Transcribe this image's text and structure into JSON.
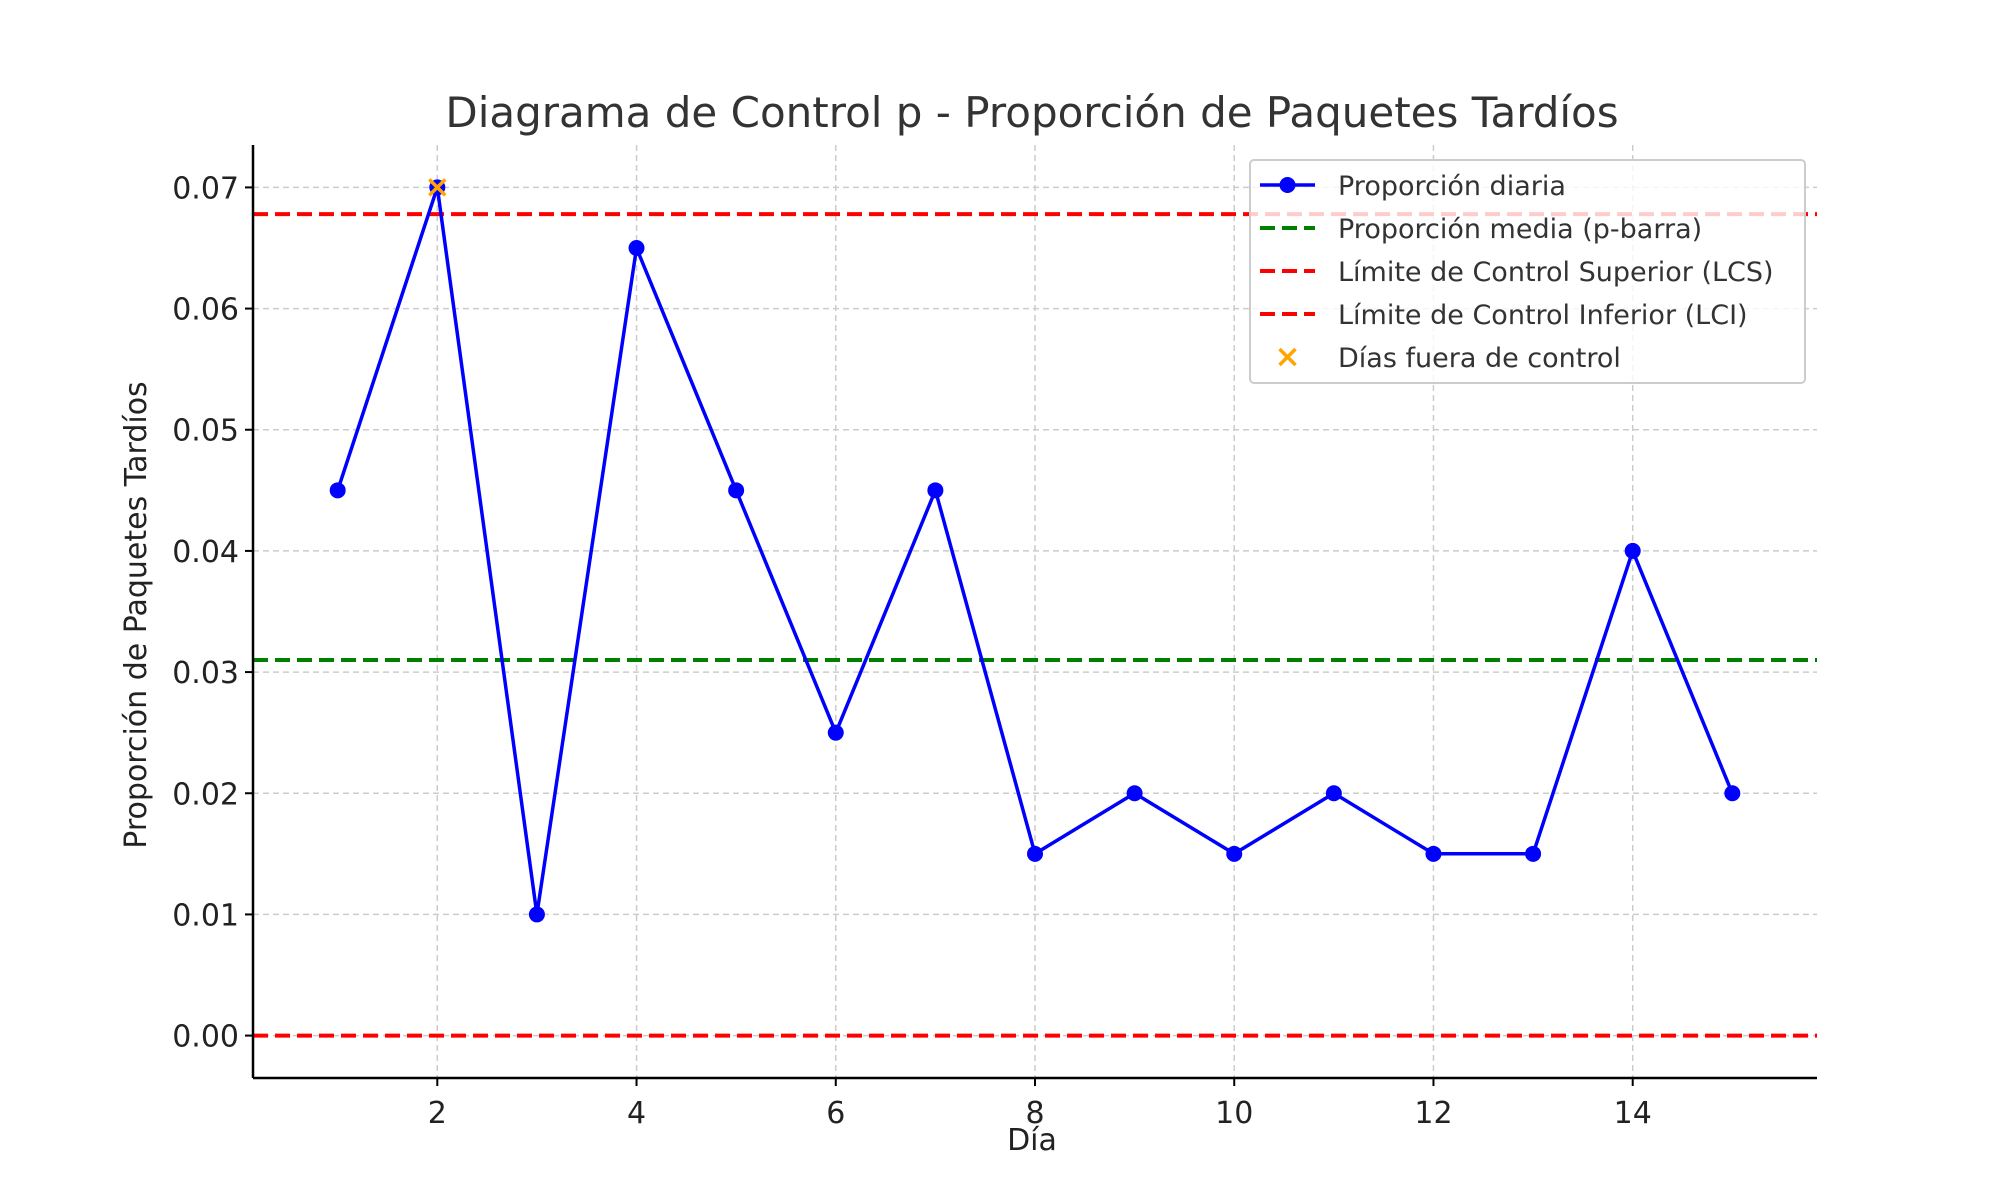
{
  "chart_data": {
    "type": "line",
    "title": "Diagrama de Control p - Proporción de Paquetes Tardíos",
    "xlabel": "Día",
    "ylabel": "Proporción de Paquetes Tardíos",
    "xlim": [
      0.15,
      15.85
    ],
    "ylim": [
      -0.0035,
      0.0735
    ],
    "xticks": [
      2,
      4,
      6,
      8,
      10,
      12,
      14
    ],
    "yticks": [
      0.0,
      0.01,
      0.02,
      0.03,
      0.04,
      0.05,
      0.06,
      0.07
    ],
    "ytick_labels": [
      "0.00",
      "0.01",
      "0.02",
      "0.03",
      "0.04",
      "0.05",
      "0.06",
      "0.07"
    ],
    "grid": true,
    "legend_position": "top-right",
    "x": [
      1,
      2,
      3,
      4,
      5,
      6,
      7,
      8,
      9,
      10,
      11,
      12,
      13,
      14,
      15
    ],
    "series": [
      {
        "name": "Proporción diaria",
        "color": "#0000ff",
        "values": [
          0.045,
          0.07,
          0.01,
          0.065,
          0.045,
          0.025,
          0.045,
          0.015,
          0.02,
          0.015,
          0.02,
          0.015,
          0.015,
          0.04,
          0.02
        ]
      }
    ],
    "reference_lines": [
      {
        "name": "Proporción media (p-barra)",
        "value": 0.031,
        "color": "#008000"
      },
      {
        "name": "Límite de Control Superior (LCS)",
        "value": 0.0678,
        "color": "#ff0000"
      },
      {
        "name": "Límite de Control Inferior (LCI)",
        "value": 0.0,
        "color": "#ff0000"
      }
    ],
    "out_of_control": {
      "name": "Días fuera de control",
      "color": "#ffa500",
      "points": [
        {
          "x": 2,
          "y": 0.07
        }
      ]
    }
  }
}
